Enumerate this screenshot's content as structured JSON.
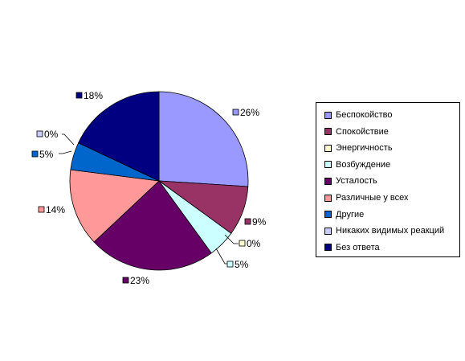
{
  "chart_data": {
    "type": "pie",
    "title": "",
    "categories": [
      "Беспокойство",
      "Спокойствие",
      "Энергичность",
      "Возбуждение",
      "Усталость",
      "Различные у всех",
      "Другие",
      "Никаких видимых реакций",
      "Без ответа"
    ],
    "values": [
      26,
      9,
      0,
      5,
      23,
      14,
      5,
      0,
      18
    ],
    "data_labels": [
      "26%",
      "9%",
      "0%",
      "5%",
      "23%",
      "14%",
      "5%",
      "0%",
      "18%"
    ],
    "colors": [
      "#9999FF",
      "#993366",
      "#FFFFCC",
      "#CCFFFF",
      "#660066",
      "#FF9999",
      "#0066CC",
      "#CCCCFF",
      "#000080"
    ],
    "legend_position": "right",
    "start": "12 o'clock, clockwise"
  }
}
